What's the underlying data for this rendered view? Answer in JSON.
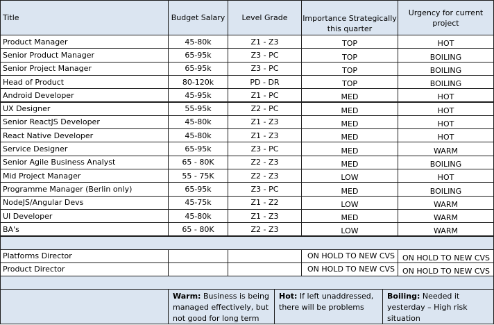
{
  "headers": {
    "title": "Title",
    "budget": "Budget Salary",
    "level": "Level Grade",
    "importance": "Importance Strategically this quarter",
    "urgency": "Urgency for current project"
  },
  "rows": [
    {
      "title": "Product Manager",
      "budget": "45-80k",
      "level": "Z1 - Z3",
      "importance": "TOP",
      "urgency": "HOT"
    },
    {
      "title": "Senior Product Manager",
      "budget": "65-95k",
      "level": "Z3 - PC",
      "importance": "TOP",
      "urgency": "BOILING"
    },
    {
      "title": "Senior Project Manager",
      "budget": "65-95k",
      "level": "Z3 - PC",
      "importance": "TOP",
      "urgency": "BOILING"
    },
    {
      "title": "Head of Product",
      "budget": "80-120k",
      "level": "PD - DR",
      "importance": "TOP",
      "urgency": "BOILING"
    },
    {
      "title": "Android Developer",
      "budget": "45-95k",
      "level": "Z1 - PC",
      "importance": "MED",
      "urgency": "HOT"
    },
    {
      "title": "UX Designer",
      "budget": "55-95k",
      "level": "Z2 - PC",
      "importance": "MED",
      "urgency": "HOT"
    },
    {
      "title": "Senior ReactJS Developer",
      "budget": "45-80k",
      "level": "Z1 - Z3",
      "importance": "MED",
      "urgency": "HOT"
    },
    {
      "title": "React Native Developer",
      "budget": "45-80k",
      "level": "Z1 - Z3",
      "importance": "MED",
      "urgency": "HOT"
    },
    {
      "title": "Service Designer",
      "budget": "65-95k",
      "level": "Z3 - PC",
      "importance": "MED",
      "urgency": "WARM"
    },
    {
      "title": "Senior Agile Business Analyst",
      "budget": "65 - 80K",
      "level": "Z2 - Z3",
      "importance": "MED",
      "urgency": "BOILING"
    },
    {
      "title": "Mid Project Manager",
      "budget": "55 - 75K",
      "level": "Z2 - Z3",
      "importance": "LOW",
      "urgency": "HOT"
    },
    {
      "title": "Programme Manager (Berlin only)",
      "budget": "65-95k",
      "level": "Z3 - PC",
      "importance": "MED",
      "urgency": "BOILING"
    },
    {
      "title": "NodeJS/Angular Devs",
      "budget": "45-75k",
      "level": "Z1 - Z2",
      "importance": "LOW",
      "urgency": "WARM"
    },
    {
      "title": "UI Developer",
      "budget": "45-80k",
      "level": "Z1 - Z3",
      "importance": "MED",
      "urgency": "WARM"
    },
    {
      "title": "BA's",
      "budget": "65 - 80K",
      "level": "Z2 - Z3",
      "importance": "LOW",
      "urgency": "WARM"
    }
  ],
  "hold_rows": [
    {
      "title": "Platforms Director",
      "importance": "ON HOLD TO NEW CVS",
      "urgency": "ON HOLD TO NEW CVS"
    },
    {
      "title": "Product Director",
      "importance": "ON HOLD TO NEW CVS",
      "urgency": "ON HOLD TO NEW CVS"
    }
  ],
  "legend": {
    "warm_label": "Warm:",
    "warm_text": "Business is being managed effectively, but not good for long term",
    "hot_label": "Hot:",
    "hot_text": "If left unaddressed, there will be problems",
    "boiling_label": "Boiling:",
    "boiling_text": "Needed it yesterday – High risk situation"
  },
  "colors": {
    "header_fill": "#dbe5f1",
    "border": "#1c1c1c"
  }
}
